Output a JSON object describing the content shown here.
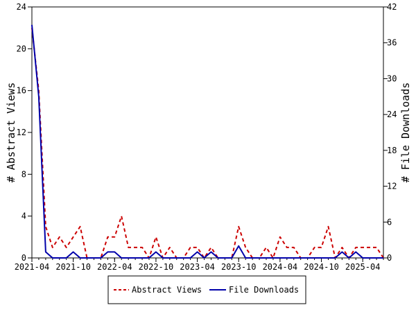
{
  "chart_data": {
    "type": "line",
    "ylabel": "# Abstract Views",
    "y2label": "# File Downloads",
    "ylim": [
      0,
      24
    ],
    "y2lim": [
      0,
      42
    ],
    "yticks": [
      0,
      4,
      8,
      12,
      16,
      20,
      24
    ],
    "y2ticks": [
      0,
      6,
      12,
      18,
      24,
      30,
      36,
      42
    ],
    "xticklabels": [
      "2021-04",
      "2021-10",
      "2022-04",
      "2022-10",
      "2023-04",
      "2023-10",
      "2024-04",
      "2024-10",
      "2025-04"
    ],
    "x": [
      "2021-04",
      "2021-05",
      "2021-06",
      "2021-07",
      "2021-08",
      "2021-09",
      "2021-10",
      "2021-11",
      "2021-12",
      "2022-01",
      "2022-02",
      "2022-03",
      "2022-04",
      "2022-05",
      "2022-06",
      "2022-07",
      "2022-08",
      "2022-09",
      "2022-10",
      "2022-11",
      "2022-12",
      "2023-01",
      "2023-02",
      "2023-03",
      "2023-04",
      "2023-05",
      "2023-06",
      "2023-07",
      "2023-08",
      "2023-09",
      "2023-10",
      "2023-11",
      "2023-12",
      "2024-01",
      "2024-02",
      "2024-03",
      "2024-04",
      "2024-05",
      "2024-06",
      "2024-07",
      "2024-08",
      "2024-09",
      "2024-10",
      "2024-11",
      "2024-12",
      "2025-01",
      "2025-02",
      "2025-03",
      "2025-04",
      "2025-05",
      "2025-06",
      "2025-07"
    ],
    "series": [
      {
        "name": "Abstract Views",
        "axis": "left",
        "color": "#cc0000",
        "dash": true,
        "values": [
          22,
          16,
          3,
          1,
          2,
          1,
          2,
          3,
          0,
          0,
          0,
          2,
          2,
          4,
          1,
          1,
          1,
          0,
          2,
          0,
          1,
          0,
          0,
          1,
          1,
          0,
          1,
          0,
          0,
          0,
          3,
          1,
          0,
          0,
          1,
          0,
          2,
          1,
          1,
          0,
          0,
          1,
          1,
          3,
          0,
          1,
          0,
          1,
          1,
          1,
          1,
          0
        ]
      },
      {
        "name": "File Downloads",
        "axis": "right",
        "color": "#0000aa",
        "dash": false,
        "values": [
          39,
          27,
          1,
          0,
          0,
          0,
          1,
          0,
          0,
          0,
          0,
          1,
          1,
          0,
          0,
          0,
          0,
          0,
          1,
          0,
          0,
          0,
          0,
          0,
          1,
          0,
          1,
          0,
          0,
          0,
          2,
          0,
          0,
          0,
          0,
          0,
          0,
          0,
          0,
          0,
          0,
          0,
          0,
          0,
          0,
          1,
          0,
          1,
          0,
          0,
          0,
          0
        ]
      }
    ],
    "grid": false,
    "legend_position": "bottom"
  }
}
